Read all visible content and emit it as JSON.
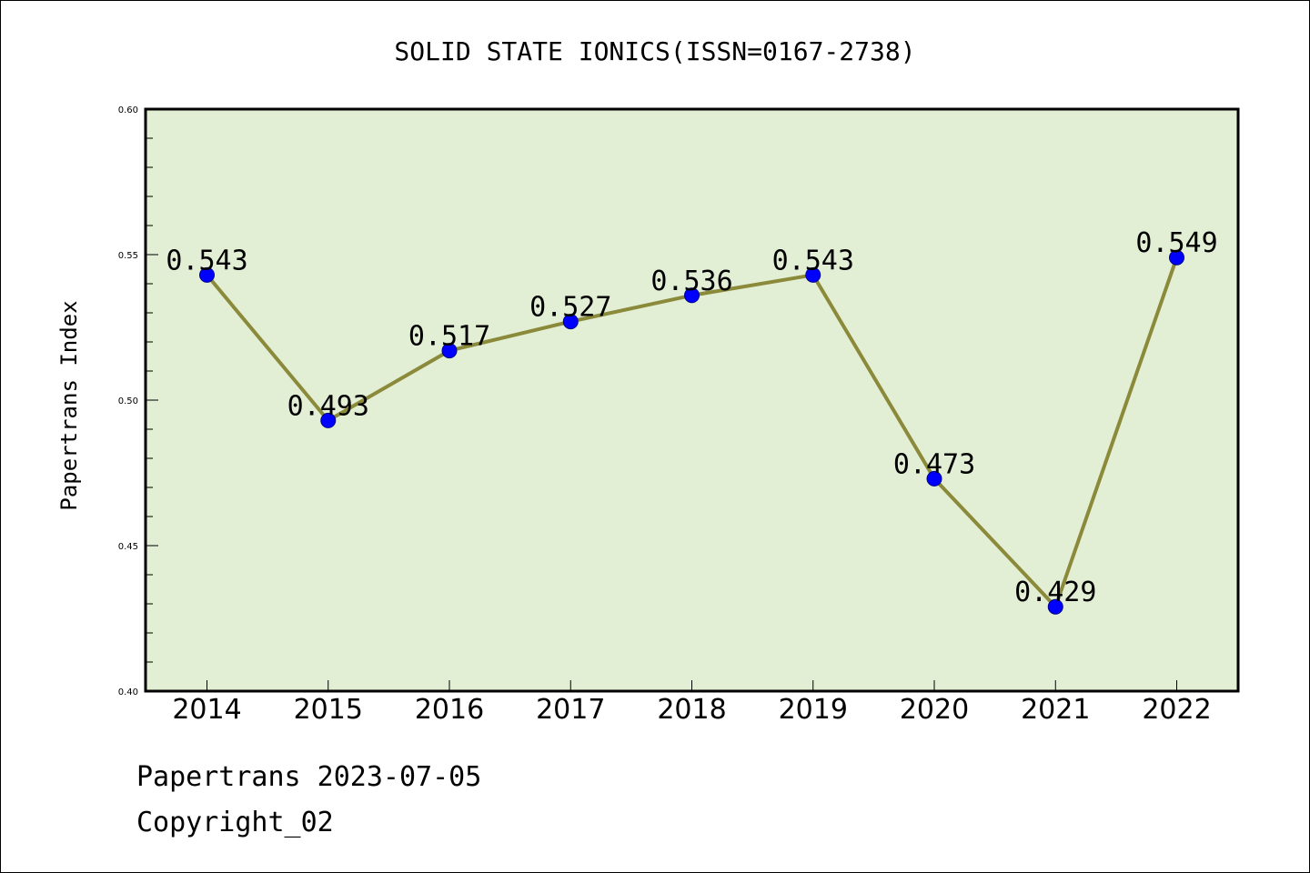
{
  "chart_data": {
    "type": "line",
    "title": "SOLID STATE IONICS(ISSN=0167-2738)",
    "xlabel": "",
    "ylabel": "Papertrans Index",
    "categories": [
      "2014",
      "2015",
      "2016",
      "2017",
      "2018",
      "2019",
      "2020",
      "2021",
      "2022"
    ],
    "values": [
      0.543,
      0.493,
      0.517,
      0.527,
      0.536,
      0.543,
      0.473,
      0.429,
      0.549
    ],
    "data_labels": [
      "0.543",
      "0.493",
      "0.517",
      "0.527",
      "0.536",
      "0.543",
      "0.473",
      "0.429",
      "0.549"
    ],
    "ylim": [
      0.4,
      0.6
    ],
    "yticks": [
      "0.40",
      "0.45",
      "0.50",
      "0.55",
      "0.60"
    ],
    "grid": false,
    "colors": {
      "plot_background": "#e2efd5",
      "line": "#8b8a3a",
      "marker": "#0000ff"
    }
  },
  "footer": {
    "line1": "Papertrans 2023-07-05",
    "line2": "Copyright_02"
  }
}
